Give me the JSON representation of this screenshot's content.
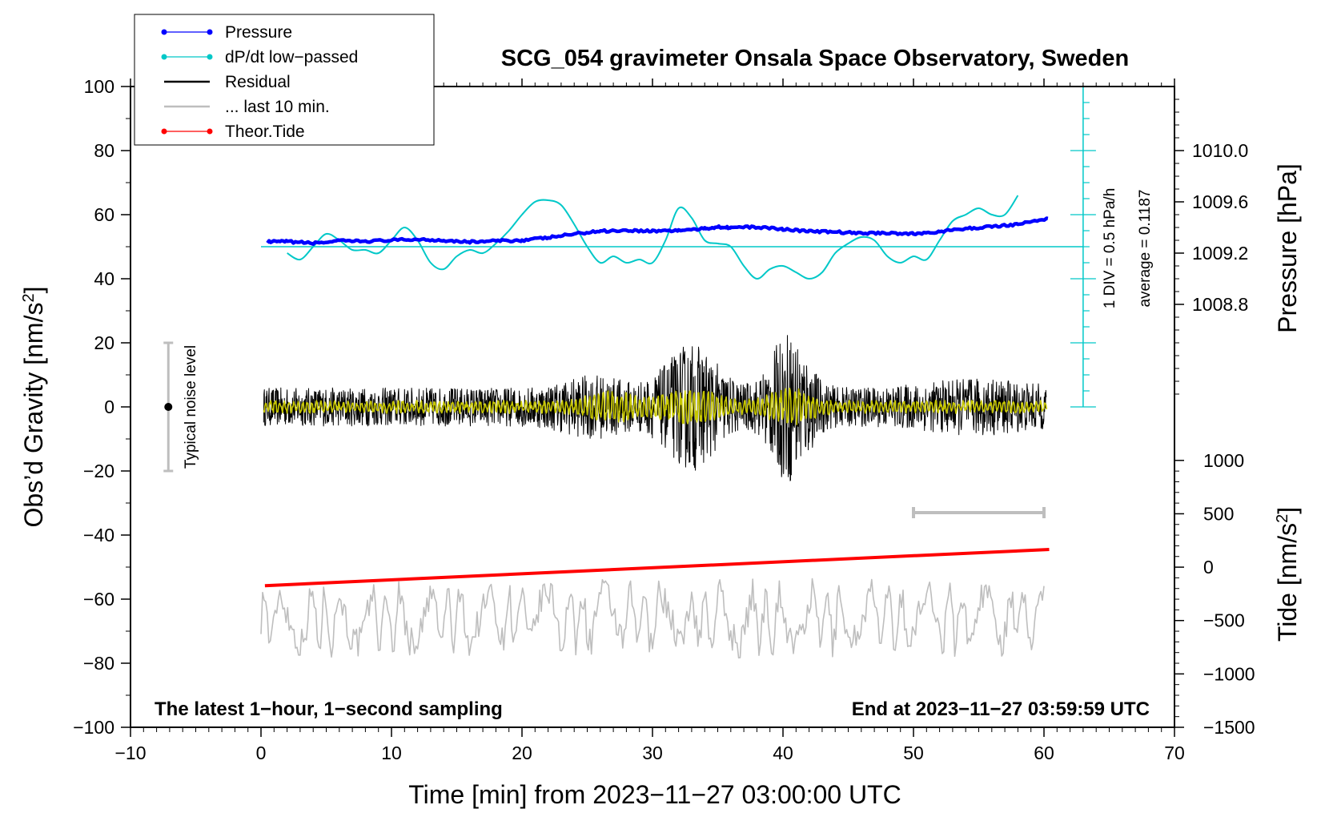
{
  "chart_data": {
    "type": "line",
    "title": "SCG_054 gravimeter Onsala Space Observatory, Sweden",
    "xlabel": "Time [min] from 2023−11−27 03:00:00 UTC",
    "ylabel": "Obs’d Gravity [nm/s",
    "ylabel_sup": "2",
    "ylabel_end": "]",
    "y_pressure_label": "Pressure [hPa]",
    "y_tide_label": "Tide [nm/s",
    "y_tide_sup": "2",
    "y_tide_end": "]",
    "xlim": [
      -10,
      70
    ],
    "ylim": [
      -100,
      100
    ],
    "x_ticks": [
      -10,
      0,
      10,
      20,
      30,
      40,
      50,
      60,
      70
    ],
    "x_tick_labels": [
      "−10",
      "0",
      "10",
      "20",
      "30",
      "40",
      "50",
      "60",
      "70"
    ],
    "y_ticks": [
      -100,
      -80,
      -60,
      -40,
      -20,
      0,
      20,
      40,
      60,
      80,
      100
    ],
    "y_tick_labels": [
      "−100",
      "−80",
      "−60",
      "−40",
      "−20",
      "0",
      "20",
      "40",
      "60",
      "80",
      "100"
    ],
    "pressure_ticks": [
      1008.8,
      1009.2,
      1009.6,
      1010.0
    ],
    "pressure_tick_labels": [
      "1008.8",
      "1009.2",
      "1009.6",
      "1010.0"
    ],
    "pressure_axis_map": {
      "p0": 1008.0,
      "g0": 0,
      "p1": 1010.0,
      "g1": 80
    },
    "tide_ticks": [
      -1500,
      -1000,
      -500,
      0,
      500,
      1000
    ],
    "tide_tick_labels": [
      "−1500",
      "−1000",
      "−500",
      "0",
      "500",
      "1000"
    ],
    "tide_axis_map": {
      "t0": -1500,
      "g0": -100,
      "t1": 1000,
      "g1": -16.7
    },
    "annotation_left": "The latest 1−hour, 1−second sampling",
    "annotation_right": "End at 2023−11−27 03:59:59 UTC",
    "noise_label": "Typical noise level",
    "noise_bar": {
      "x": -7.1,
      "center": 0,
      "half_range": 20
    },
    "div_label": "1 DIV = 0.5 hPa/h",
    "avg_label": "average = 0.1187",
    "dpdt_scale": {
      "x": 63,
      "y_bottom": 0,
      "y_top": 100,
      "divisions": 20,
      "zero_level": 50
    },
    "last10_bar": {
      "x_start": 50,
      "x_end": 60,
      "y": -33
    },
    "legend": [
      {
        "label": "Pressure",
        "color": "#0000ff",
        "style": "line-dot"
      },
      {
        "label": "dP/dt low−passed",
        "color": "#00c8c8",
        "style": "line-dot"
      },
      {
        "label": "Residual",
        "color": "#000000",
        "style": "line"
      },
      {
        "label": "... last 10 min.",
        "color": "#bebebe",
        "style": "line"
      },
      {
        "label": "Theor.Tide",
        "color": "#ff0000",
        "style": "line-dot"
      }
    ],
    "series": [
      {
        "name": "Pressure (plotted in gravity units)",
        "color": "#0000ff",
        "x": [
          0.5,
          2,
          4,
          6,
          8,
          10,
          12,
          14,
          16,
          18,
          20,
          22,
          24,
          26,
          28,
          30,
          32,
          34,
          35,
          36,
          38,
          40,
          42,
          44,
          46,
          48,
          50,
          52,
          54,
          56,
          58,
          60.3
        ],
        "y": [
          51.5,
          51.6,
          51.1,
          51.8,
          51.7,
          52.0,
          52.3,
          52.0,
          51.5,
          51.8,
          52.0,
          52.8,
          54.0,
          54.9,
          55.1,
          54.9,
          55.1,
          55.6,
          56.2,
          56.0,
          56.1,
          55.5,
          54.8,
          54.6,
          54.2,
          54.3,
          54.0,
          54.7,
          55.6,
          56.3,
          57.0,
          58.8
        ]
      },
      {
        "name": "dP/dt low-passed",
        "color": "#00c8c8",
        "x": [
          2,
          3,
          4,
          5,
          6,
          7,
          8,
          9,
          10,
          11,
          12,
          13,
          14,
          15,
          16,
          17,
          18,
          19,
          20,
          21,
          22,
          23,
          24,
          25,
          26,
          27,
          28,
          29,
          30,
          31,
          32,
          33,
          34,
          35,
          36,
          37,
          38,
          39,
          40,
          41,
          42,
          43,
          44,
          45,
          46,
          47,
          48,
          49,
          50,
          51,
          52,
          53,
          54,
          55,
          56,
          57,
          58
        ],
        "y": [
          48,
          46,
          50,
          54,
          52,
          49,
          49,
          48,
          52,
          56,
          52,
          45,
          43,
          47,
          49,
          48,
          51,
          55,
          60,
          64,
          64.5,
          63,
          57,
          50,
          45,
          47,
          45,
          46,
          45,
          52,
          62,
          59,
          52,
          51,
          50,
          44,
          40,
          43,
          44,
          42,
          40,
          42,
          48,
          51,
          53,
          52,
          47,
          45,
          47,
          46,
          52,
          58,
          60,
          62,
          60,
          60,
          66
        ]
      },
      {
        "name": "Residual",
        "color": "#000000",
        "x_range": [
          0.2,
          60.2
        ],
        "y_range": [
          -33,
          29
        ]
      },
      {
        "name": "Residual low-passed",
        "color": "#c8c800",
        "x_range": [
          0.2,
          60.2
        ],
        "y_range": [
          -11,
          7
        ]
      },
      {
        "name": "... last 10 min.",
        "color": "#bebebe",
        "x_range": [
          0.0,
          60.0
        ],
        "y_range": [
          -79,
          -51
        ]
      },
      {
        "name": "Theor.Tide",
        "color": "#ff0000",
        "x": [
          0.3,
          60.4
        ],
        "y": [
          -55.8,
          -44.5
        ]
      }
    ]
  }
}
